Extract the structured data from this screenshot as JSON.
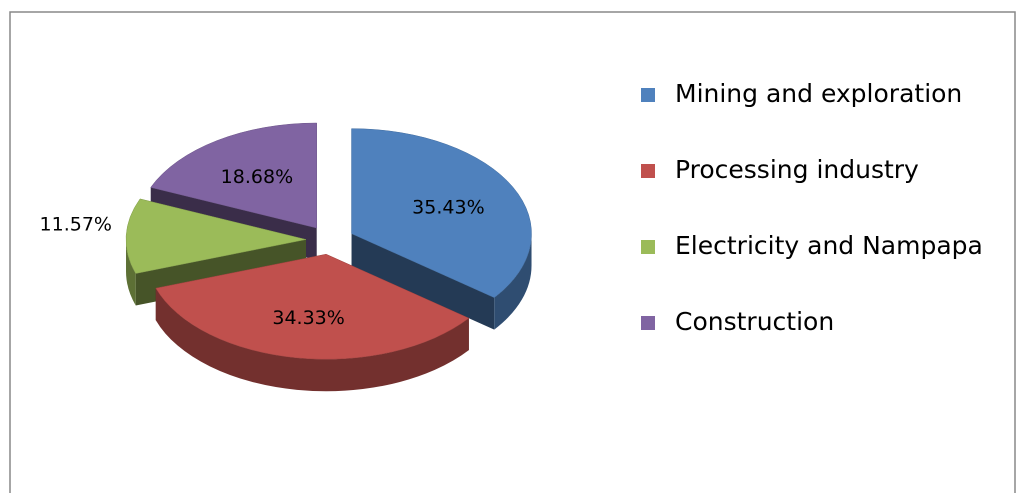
{
  "chart_data": {
    "type": "pie3d",
    "categories": [
      "Mining and exploration",
      "Processing industry",
      "Electricity and Nampapa",
      "Construction"
    ],
    "values": [
      35.43,
      34.33,
      11.57,
      18.68
    ],
    "value_labels": [
      "35.43%",
      "34.33%",
      "11.57%",
      "18.68%"
    ],
    "colors": [
      "#4f81bd",
      "#c0504d",
      "#9bbb59",
      "#8064a2"
    ],
    "legend": "right"
  }
}
